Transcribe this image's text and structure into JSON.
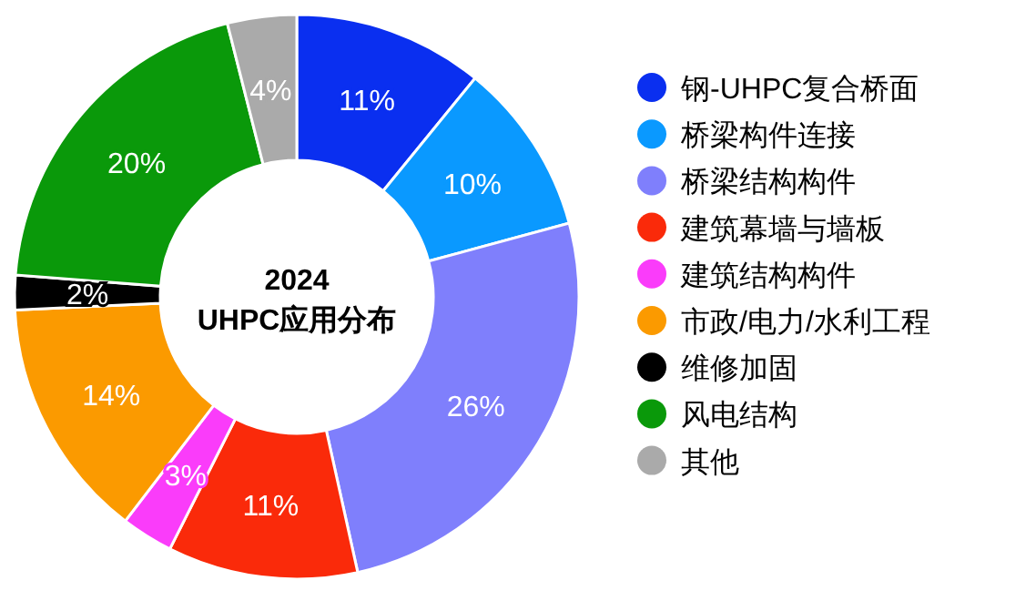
{
  "chart_data": {
    "type": "donut",
    "title": "2024",
    "subtitle": "UHPC应用分布",
    "categories": [
      "钢-UHPC复合桥面",
      "桥梁构件连接",
      "桥梁结构构件",
      "建筑幕墙与墙板",
      "建筑结构构件",
      "市政/电力/水利工程",
      "维修加固",
      "风电结构",
      "其他"
    ],
    "values": [
      11,
      10,
      26,
      11,
      3,
      14,
      2,
      20,
      4
    ],
    "colors": [
      "#0a2ff0",
      "#0a99ff",
      "#7f7ffc",
      "#fa2a0a",
      "#fa3cfa",
      "#fb9a00",
      "#000000",
      "#0a990a",
      "#aaaaaa"
    ],
    "value_labels": [
      "11%",
      "10%",
      "26%",
      "11%",
      "3%",
      "14%",
      "2%",
      "20%",
      "4%"
    ],
    "legend": "right"
  }
}
